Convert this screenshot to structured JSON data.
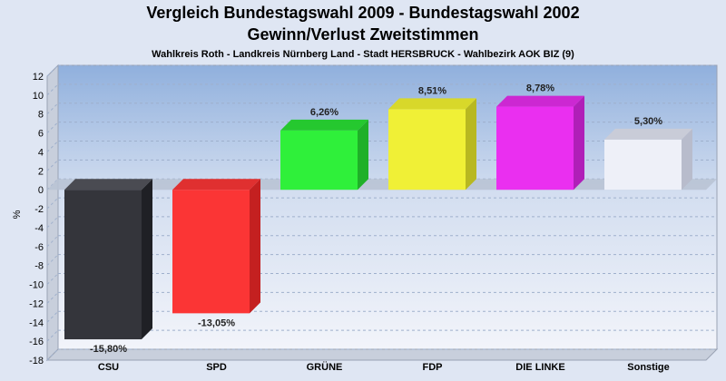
{
  "title_line1": "Vergleich Bundestagswahl 2009 - Bundestagswahl 2002",
  "title_line2": "Gewinn/Verlust Zweitstimmen",
  "subtitle": "Wahlkreis Roth - Landkreis Nürnberg Land - Stadt HERSBRUCK - Wahlbezirk AOK BIZ (9)",
  "chart_data": {
    "type": "bar",
    "ylabel": "%",
    "ylim": [
      -18,
      12
    ],
    "yticks": [
      12,
      10,
      8,
      6,
      4,
      2,
      0,
      -2,
      -4,
      -6,
      -8,
      -10,
      -12,
      -14,
      -16,
      -18
    ],
    "grid": true,
    "categories": [
      "CSU",
      "SPD",
      "GRÜNE",
      "FDP",
      "DIE LINKE",
      "Sonstige"
    ],
    "values": [
      -15.8,
      -13.05,
      6.26,
      8.51,
      8.78,
      5.3
    ],
    "labels": [
      "-15,80%",
      "-13,05%",
      "6,26%",
      "8,51%",
      "8,78%",
      "5,30%"
    ],
    "colors": [
      "#34353b",
      "#fb3535",
      "#2ff03a",
      "#f0f036",
      "#ea2ff0",
      "#eef0f8"
    ],
    "side_colors": [
      "#1f2025",
      "#c42020",
      "#1fb028",
      "#b8b820",
      "#b01fb8",
      "#b8bccc"
    ],
    "top_colors": [
      "#4a4b52",
      "#e03030",
      "#25c82f",
      "#d8d82a",
      "#cc28d2",
      "#c9ccd8"
    ]
  }
}
